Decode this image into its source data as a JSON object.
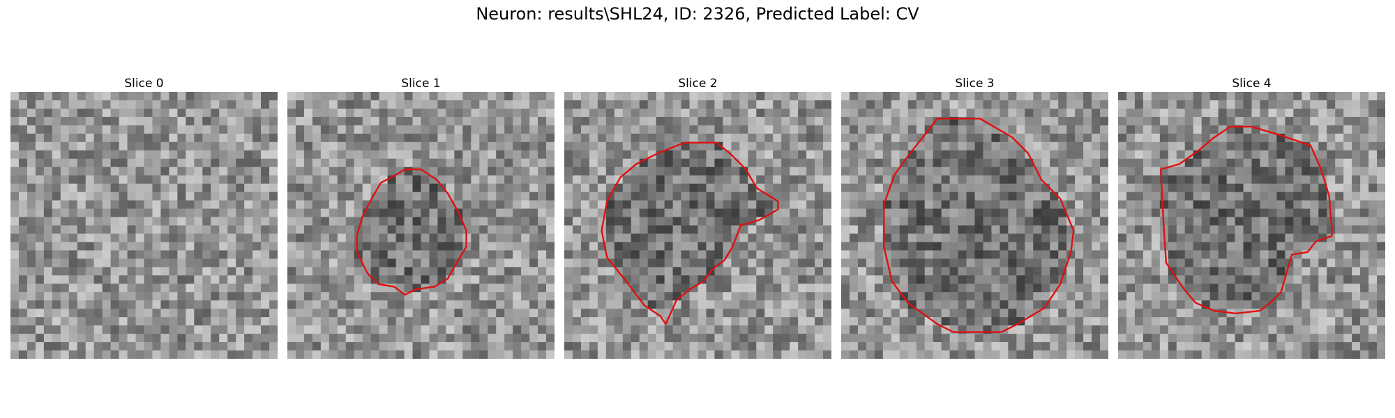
{
  "figure": {
    "title": "Neuron: results\\SHL24, ID: 2326, Predicted Label: CV"
  },
  "contour_color": "#e01010",
  "panels": [
    {
      "title": "Slice 0",
      "seed": 11,
      "contour": []
    },
    {
      "title": "Slice 1",
      "seed": 23,
      "contour": [
        [
          0.44,
          0.29
        ],
        [
          0.5,
          0.29
        ],
        [
          0.56,
          0.33
        ],
        [
          0.6,
          0.38
        ],
        [
          0.64,
          0.45
        ],
        [
          0.67,
          0.52
        ],
        [
          0.67,
          0.58
        ],
        [
          0.64,
          0.63
        ],
        [
          0.6,
          0.7
        ],
        [
          0.55,
          0.73
        ],
        [
          0.48,
          0.74
        ],
        [
          0.44,
          0.76
        ],
        [
          0.4,
          0.73
        ],
        [
          0.34,
          0.72
        ],
        [
          0.3,
          0.68
        ],
        [
          0.26,
          0.6
        ],
        [
          0.26,
          0.54
        ],
        [
          0.28,
          0.47
        ],
        [
          0.31,
          0.41
        ],
        [
          0.35,
          0.34
        ],
        [
          0.39,
          0.32
        ]
      ]
    },
    {
      "title": "Slice 2",
      "seed": 37,
      "contour": [
        [
          0.35,
          0.23
        ],
        [
          0.45,
          0.19
        ],
        [
          0.57,
          0.19
        ],
        [
          0.62,
          0.23
        ],
        [
          0.68,
          0.29
        ],
        [
          0.72,
          0.36
        ],
        [
          0.8,
          0.41
        ],
        [
          0.8,
          0.44
        ],
        [
          0.73,
          0.48
        ],
        [
          0.66,
          0.5
        ],
        [
          0.63,
          0.58
        ],
        [
          0.6,
          0.63
        ],
        [
          0.56,
          0.66
        ],
        [
          0.52,
          0.71
        ],
        [
          0.47,
          0.74
        ],
        [
          0.42,
          0.78
        ],
        [
          0.38,
          0.87
        ],
        [
          0.36,
          0.84
        ],
        [
          0.3,
          0.8
        ],
        [
          0.24,
          0.72
        ],
        [
          0.16,
          0.62
        ],
        [
          0.14,
          0.52
        ],
        [
          0.16,
          0.41
        ],
        [
          0.21,
          0.32
        ],
        [
          0.27,
          0.27
        ]
      ]
    },
    {
      "title": "Slice 3",
      "seed": 41,
      "contour": [
        [
          0.36,
          0.1
        ],
        [
          0.52,
          0.1
        ],
        [
          0.64,
          0.17
        ],
        [
          0.7,
          0.23
        ],
        [
          0.75,
          0.33
        ],
        [
          0.82,
          0.4
        ],
        [
          0.87,
          0.52
        ],
        [
          0.86,
          0.6
        ],
        [
          0.82,
          0.72
        ],
        [
          0.76,
          0.81
        ],
        [
          0.66,
          0.87
        ],
        [
          0.6,
          0.9
        ],
        [
          0.42,
          0.9
        ],
        [
          0.36,
          0.87
        ],
        [
          0.25,
          0.79
        ],
        [
          0.19,
          0.71
        ],
        [
          0.16,
          0.58
        ],
        [
          0.16,
          0.42
        ],
        [
          0.2,
          0.31
        ],
        [
          0.25,
          0.24
        ]
      ]
    },
    {
      "title": "Slice 4",
      "seed": 53,
      "contour": [
        [
          0.42,
          0.13
        ],
        [
          0.5,
          0.13
        ],
        [
          0.6,
          0.16
        ],
        [
          0.72,
          0.2
        ],
        [
          0.76,
          0.29
        ],
        [
          0.79,
          0.39
        ],
        [
          0.8,
          0.51
        ],
        [
          0.8,
          0.54
        ],
        [
          0.74,
          0.56
        ],
        [
          0.71,
          0.6
        ],
        [
          0.65,
          0.61
        ],
        [
          0.63,
          0.68
        ],
        [
          0.61,
          0.75
        ],
        [
          0.57,
          0.79
        ],
        [
          0.53,
          0.82
        ],
        [
          0.44,
          0.83
        ],
        [
          0.36,
          0.82
        ],
        [
          0.29,
          0.79
        ],
        [
          0.24,
          0.73
        ],
        [
          0.18,
          0.64
        ],
        [
          0.17,
          0.49
        ],
        [
          0.16,
          0.29
        ],
        [
          0.23,
          0.27
        ],
        [
          0.3,
          0.22
        ],
        [
          0.36,
          0.17
        ]
      ]
    }
  ]
}
